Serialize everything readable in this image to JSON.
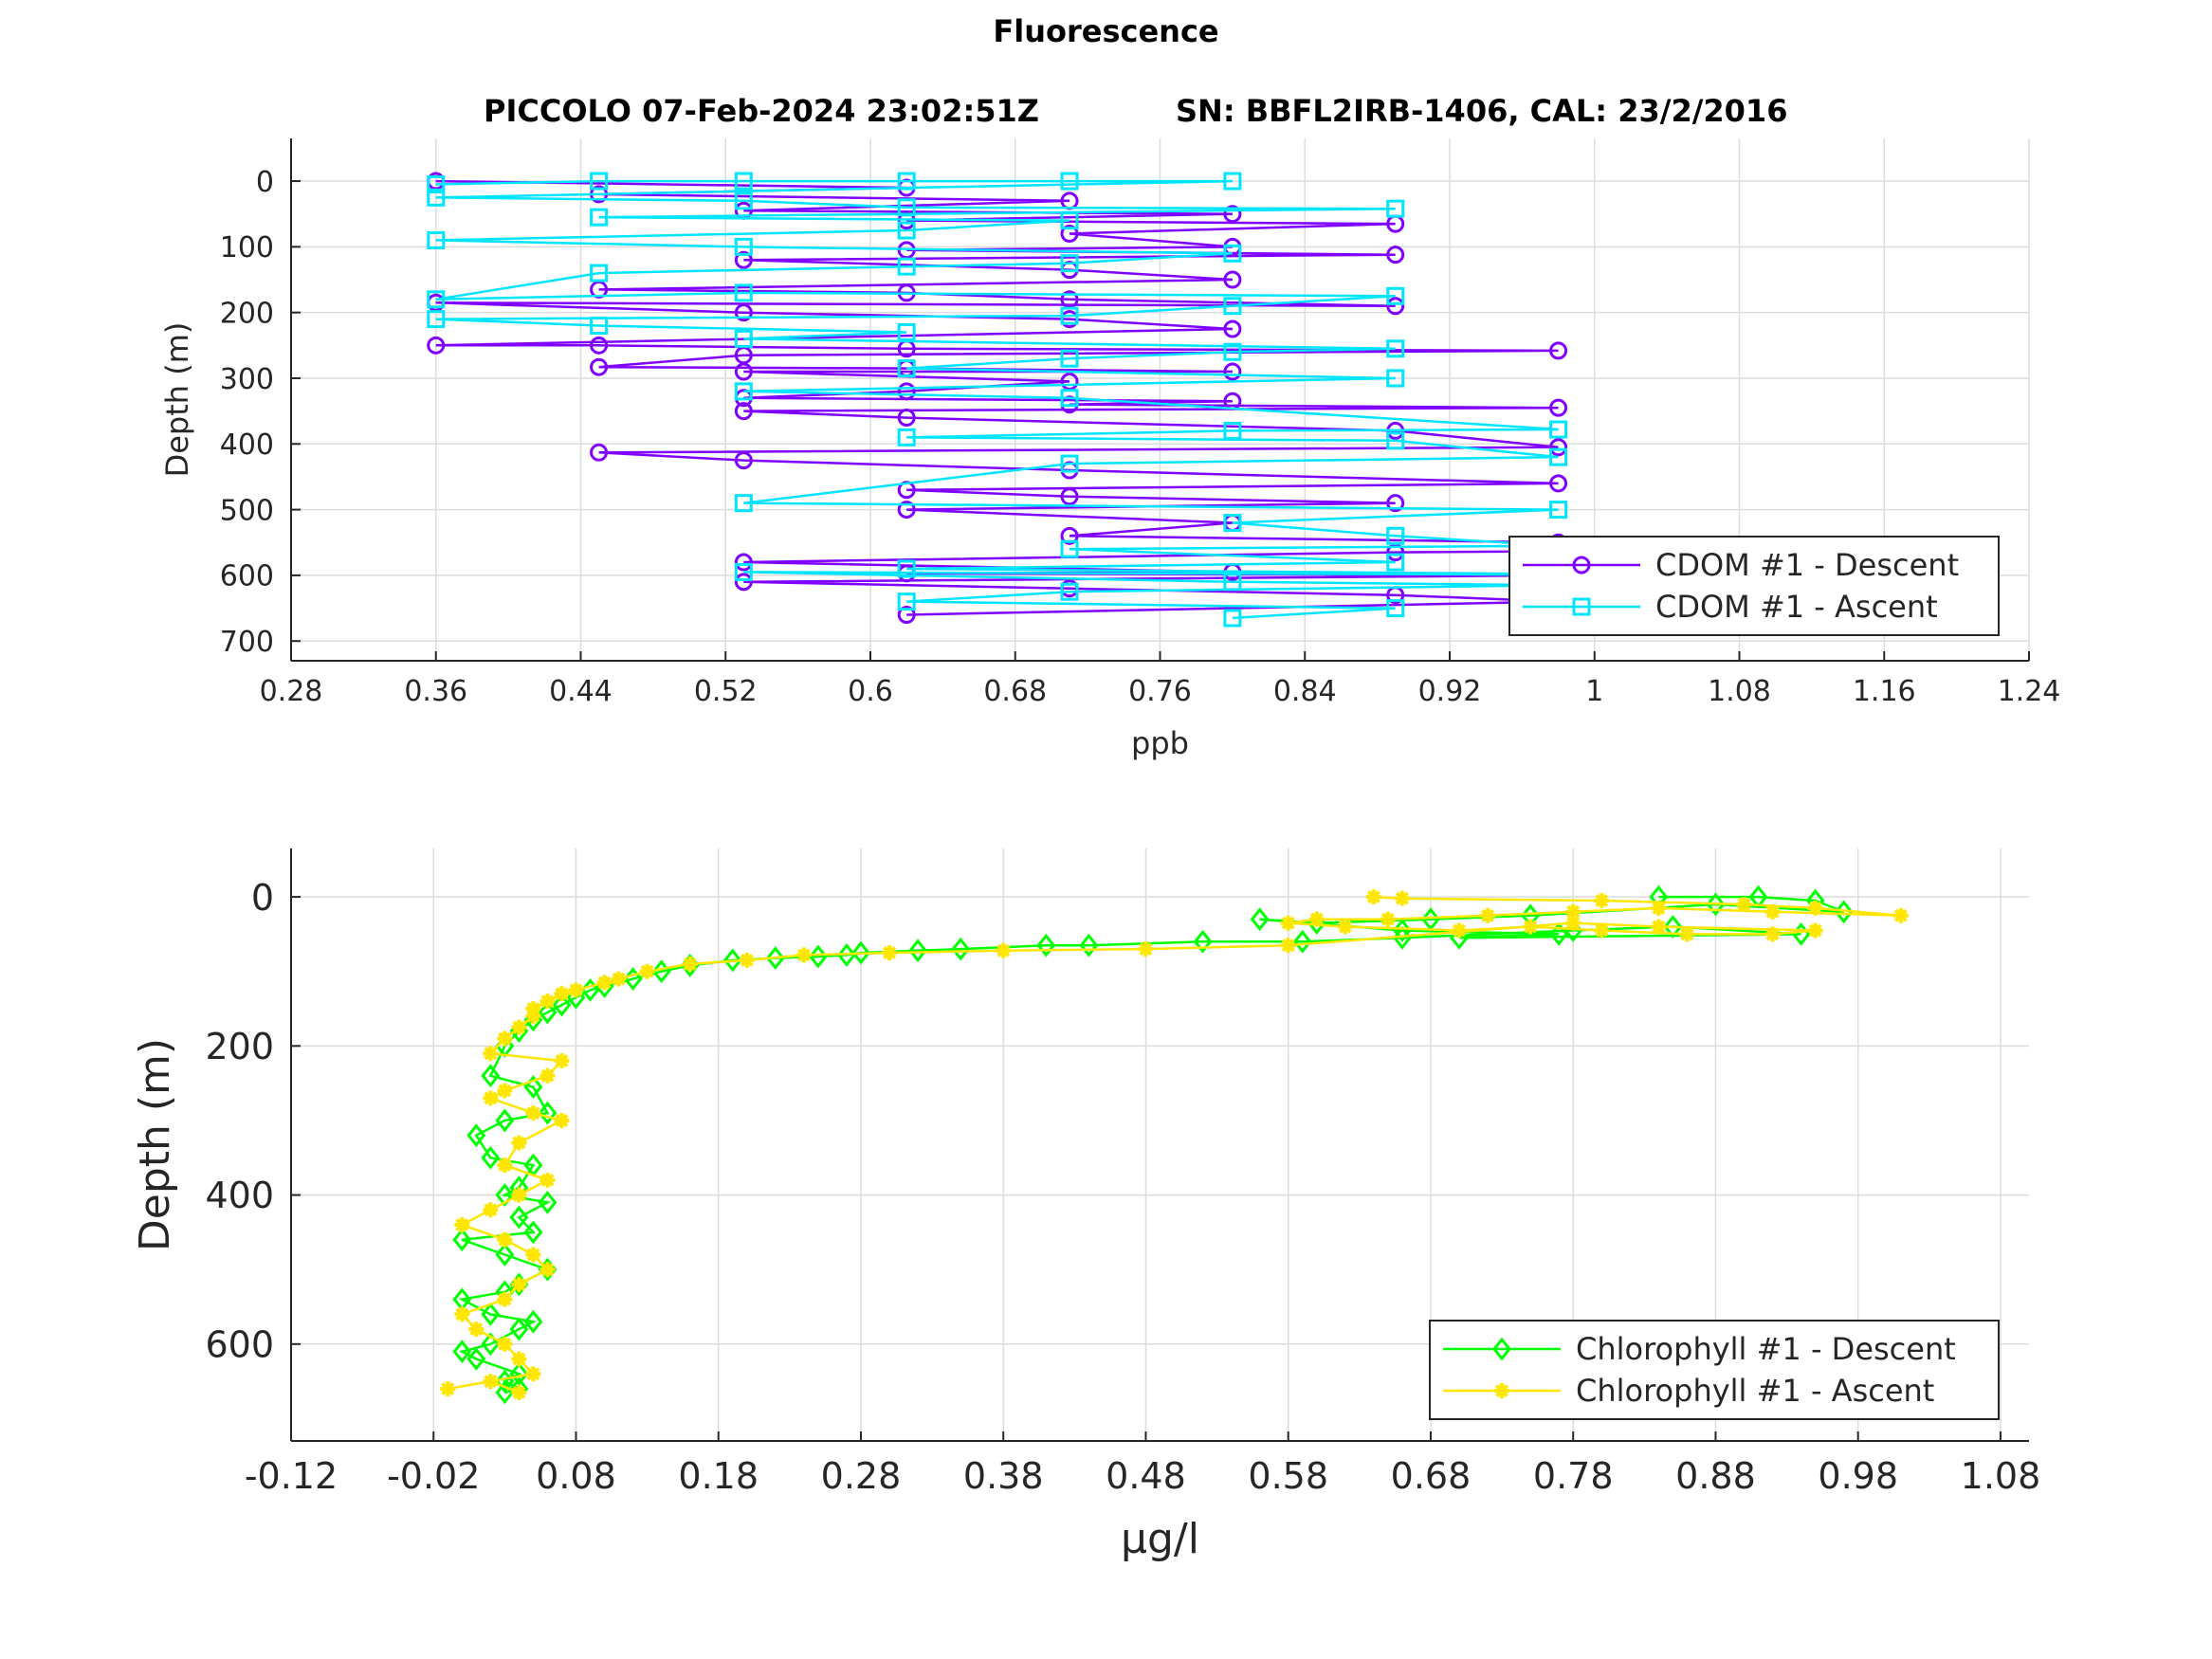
{
  "figure": {
    "title": "Fluorescence",
    "subtitle_left": "PICCOLO 07-Feb-2024 23:02:51Z",
    "subtitle_right": "SN: BBFL2IRB-1406, CAL: 23/2/2016"
  },
  "chart_data": [
    {
      "type": "line",
      "xlabel": "ppb",
      "ylabel": "Depth (m)",
      "xlim": [
        0.28,
        1.24
      ],
      "ylim": [
        -65,
        730
      ],
      "y_reversed": true,
      "grid": true,
      "x_ticks": [
        "0.28",
        "0.36",
        "0.44",
        "0.52",
        "0.6",
        "0.68",
        "0.76",
        "0.84",
        "0.92",
        "1",
        "1.08",
        "1.16",
        "1.24"
      ],
      "y_ticks": [
        "0",
        "100",
        "200",
        "300",
        "400",
        "500",
        "600",
        "700"
      ],
      "legend_position": "bottom-right",
      "colors": {
        "descent": "#8000ff",
        "ascent": "#00e5ff"
      },
      "series": [
        {
          "name": "CDOM #1 - Descent",
          "marker": "circle",
          "color": "#8000ff",
          "x": [
            0.36,
            0.62,
            0.45,
            0.71,
            0.53,
            0.8,
            0.62,
            0.89,
            0.71,
            0.8,
            0.62,
            0.89,
            0.53,
            0.71,
            0.8,
            0.45,
            0.62,
            0.71,
            0.89,
            0.36,
            0.53,
            0.71,
            0.8,
            0.36,
            0.45,
            0.62,
            0.98,
            0.53,
            0.45,
            0.62,
            0.8,
            0.53,
            0.71,
            0.62,
            0.53,
            0.8,
            0.71,
            0.98,
            0.53,
            0.62,
            0.89,
            0.98,
            0.45,
            0.53,
            0.71,
            0.98,
            0.62,
            0.71,
            0.89,
            0.62,
            0.8,
            0.71,
            0.98,
            1.16,
            0.89,
            0.53,
            0.8,
            0.62,
            0.98,
            0.53,
            0.71,
            0.89,
            0.98,
            0.62
          ],
          "y": [
            0,
            10,
            20,
            30,
            45,
            50,
            60,
            65,
            80,
            100,
            105,
            112,
            120,
            135,
            150,
            165,
            170,
            180,
            190,
            185,
            200,
            210,
            225,
            250,
            250,
            255,
            258,
            265,
            283,
            285,
            290,
            290,
            305,
            320,
            330,
            335,
            340,
            345,
            350,
            360,
            380,
            405,
            413,
            425,
            440,
            460,
            470,
            480,
            490,
            500,
            520,
            540,
            550,
            560,
            565,
            580,
            595,
            597,
            600,
            610,
            620,
            630,
            640,
            660
          ]
        },
        {
          "name": "CDOM #1 - Ascent",
          "marker": "square",
          "color": "#00e5ff",
          "x": [
            0.36,
            0.45,
            0.53,
            0.62,
            0.71,
            0.8,
            0.36,
            0.53,
            0.62,
            0.89,
            0.45,
            0.71,
            0.62,
            0.36,
            0.53,
            0.8,
            0.71,
            0.62,
            0.45,
            0.36,
            0.53,
            0.89,
            0.8,
            0.71,
            0.36,
            0.45,
            0.62,
            0.53,
            0.89,
            0.8,
            0.71,
            0.62,
            0.89,
            0.53,
            0.71,
            0.98,
            0.8,
            0.62,
            0.89,
            0.98,
            0.71,
            0.53,
            0.98,
            0.8,
            0.89,
            0.98,
            0.71,
            0.89,
            0.62,
            1.07,
            0.53,
            0.8,
            0.98,
            0.71,
            0.62,
            0.89,
            0.8
          ],
          "y": [
            5,
            0,
            0,
            0,
            0,
            0,
            25,
            30,
            40,
            42,
            55,
            60,
            75,
            90,
            100,
            110,
            125,
            130,
            140,
            180,
            170,
            175,
            190,
            205,
            210,
            220,
            230,
            240,
            255,
            260,
            270,
            285,
            300,
            320,
            330,
            378,
            380,
            390,
            395,
            420,
            430,
            490,
            500,
            520,
            540,
            555,
            560,
            580,
            590,
            600,
            595,
            610,
            615,
            625,
            640,
            650,
            665
          ]
        }
      ]
    },
    {
      "type": "line",
      "xlabel": "μg/l",
      "ylabel": "Depth (m)",
      "xlim": [
        -0.12,
        1.1
      ],
      "ylim": [
        -65,
        730
      ],
      "y_reversed": true,
      "grid": true,
      "x_ticks": [
        "-0.12",
        "-0.02",
        "0.08",
        "0.18",
        "0.28",
        "0.38",
        "0.48",
        "0.58",
        "0.68",
        "0.78",
        "0.88",
        "0.98",
        "1.08"
      ],
      "y_ticks": [
        "0",
        "200",
        "400",
        "600"
      ],
      "legend_position": "bottom-right",
      "colors": {
        "descent": "#00ff00",
        "ascent": "#ffe600"
      },
      "series": [
        {
          "name": "Chlorophyll #1 - Descent",
          "marker": "diamond",
          "color": "#00ff00",
          "x": [
            0.84,
            0.91,
            0.95,
            0.97,
            0.88,
            0.75,
            0.68,
            0.6,
            0.56,
            0.66,
            0.77,
            0.7,
            0.94,
            0.85,
            0.78,
            0.66,
            0.59,
            0.52,
            0.44,
            0.41,
            0.35,
            0.32,
            0.28,
            0.27,
            0.25,
            0.22,
            0.19,
            0.16,
            0.14,
            0.12,
            0.1,
            0.09,
            0.08,
            0.07,
            0.06,
            0.05,
            0.04,
            0.03,
            0.02,
            0.05,
            0.06,
            0.03,
            0.01,
            0.02,
            0.05,
            0.04,
            0.03,
            0.06,
            0.04,
            0.05,
            0.0,
            0.03,
            0.06,
            0.04,
            0.03,
            0.0,
            0.02,
            0.05,
            0.04,
            0.02,
            0.0,
            0.01,
            0.04,
            0.03,
            0.04,
            0.03
          ],
          "y": [
            0,
            0,
            5,
            20,
            10,
            25,
            30,
            35,
            30,
            45,
            50,
            55,
            50,
            40,
            45,
            55,
            60,
            60,
            65,
            65,
            70,
            72,
            75,
            78,
            80,
            82,
            85,
            92,
            100,
            110,
            120,
            125,
            135,
            145,
            155,
            165,
            180,
            200,
            240,
            255,
            290,
            300,
            320,
            350,
            360,
            390,
            400,
            410,
            430,
            450,
            460,
            480,
            500,
            520,
            530,
            540,
            560,
            570,
            580,
            600,
            610,
            620,
            640,
            650,
            660,
            665
          ]
        },
        {
          "name": "Chlorophyll #1 - Ascent",
          "marker": "asterisk",
          "color": "#ffe600",
          "x": [
            0.64,
            0.66,
            0.8,
            0.9,
            0.95,
            1.01,
            0.92,
            0.84,
            0.78,
            0.72,
            0.65,
            0.6,
            0.58,
            0.62,
            0.7,
            0.75,
            0.8,
            0.86,
            0.92,
            0.95,
            0.84,
            0.78,
            0.58,
            0.48,
            0.38,
            0.3,
            0.24,
            0.2,
            0.16,
            0.13,
            0.11,
            0.1,
            0.08,
            0.07,
            0.06,
            0.05,
            0.05,
            0.04,
            0.03,
            0.02,
            0.07,
            0.06,
            0.03,
            0.02,
            0.05,
            0.07,
            0.04,
            0.03,
            0.06,
            0.04,
            0.02,
            0.0,
            0.03,
            0.05,
            0.06,
            0.04,
            0.03,
            0.0,
            0.01,
            0.03,
            0.04,
            0.05,
            -0.01,
            0.02,
            0.04
          ],
          "y": [
            0,
            2,
            5,
            10,
            15,
            25,
            20,
            15,
            20,
            25,
            30,
            30,
            35,
            40,
            45,
            40,
            45,
            50,
            50,
            45,
            40,
            35,
            65,
            70,
            72,
            75,
            78,
            85,
            90,
            100,
            110,
            115,
            125,
            130,
            140,
            150,
            160,
            175,
            190,
            210,
            220,
            240,
            260,
            270,
            290,
            300,
            330,
            360,
            380,
            400,
            420,
            440,
            460,
            480,
            500,
            520,
            540,
            560,
            580,
            600,
            620,
            640,
            660,
            650,
            665
          ]
        }
      ]
    }
  ]
}
